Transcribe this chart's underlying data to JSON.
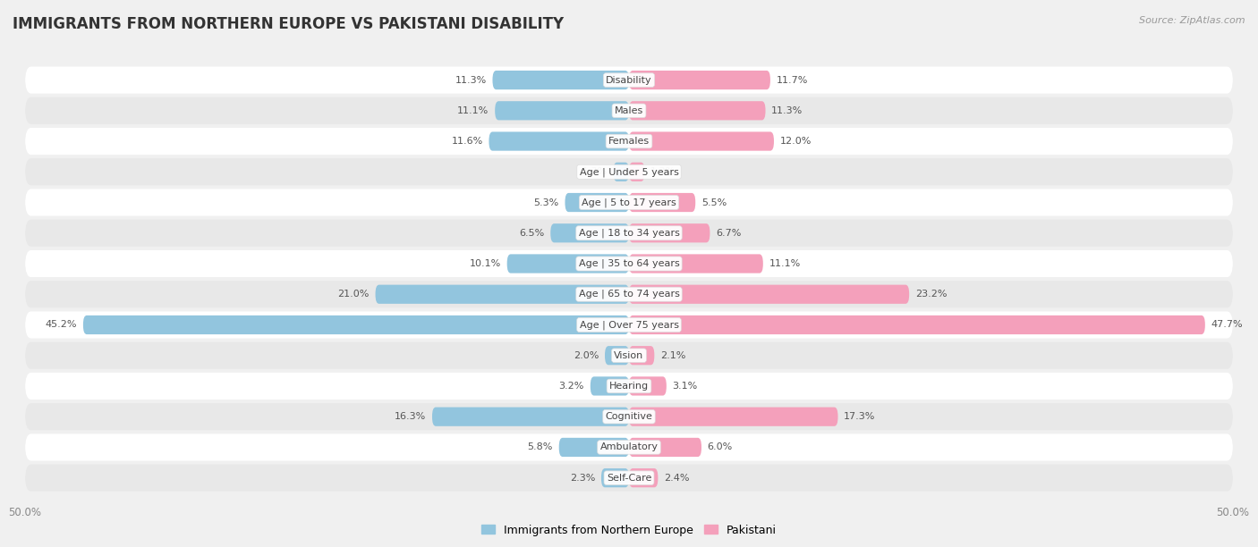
{
  "title": "IMMIGRANTS FROM NORTHERN EUROPE VS PAKISTANI DISABILITY",
  "source": "Source: ZipAtlas.com",
  "categories": [
    "Disability",
    "Males",
    "Females",
    "Age | Under 5 years",
    "Age | 5 to 17 years",
    "Age | 18 to 34 years",
    "Age | 35 to 64 years",
    "Age | 65 to 74 years",
    "Age | Over 75 years",
    "Vision",
    "Hearing",
    "Cognitive",
    "Ambulatory",
    "Self-Care"
  ],
  "left_values": [
    11.3,
    11.1,
    11.6,
    1.3,
    5.3,
    6.5,
    10.1,
    21.0,
    45.2,
    2.0,
    3.2,
    16.3,
    5.8,
    2.3
  ],
  "right_values": [
    11.7,
    11.3,
    12.0,
    1.3,
    5.5,
    6.7,
    11.1,
    23.2,
    47.7,
    2.1,
    3.1,
    17.3,
    6.0,
    2.4
  ],
  "left_color": "#92C5DE",
  "right_color": "#F4A0BB",
  "left_label": "Immigrants from Northern Europe",
  "right_label": "Pakistani",
  "background_color": "#f0f0f0",
  "row_bg_even": "#ffffff",
  "row_bg_odd": "#e8e8e8",
  "max_value": 50.0,
  "title_fontsize": 12,
  "source_fontsize": 8,
  "bar_label_fontsize": 8,
  "cat_label_fontsize": 8,
  "axis_fontsize": 8.5,
  "legend_fontsize": 9
}
